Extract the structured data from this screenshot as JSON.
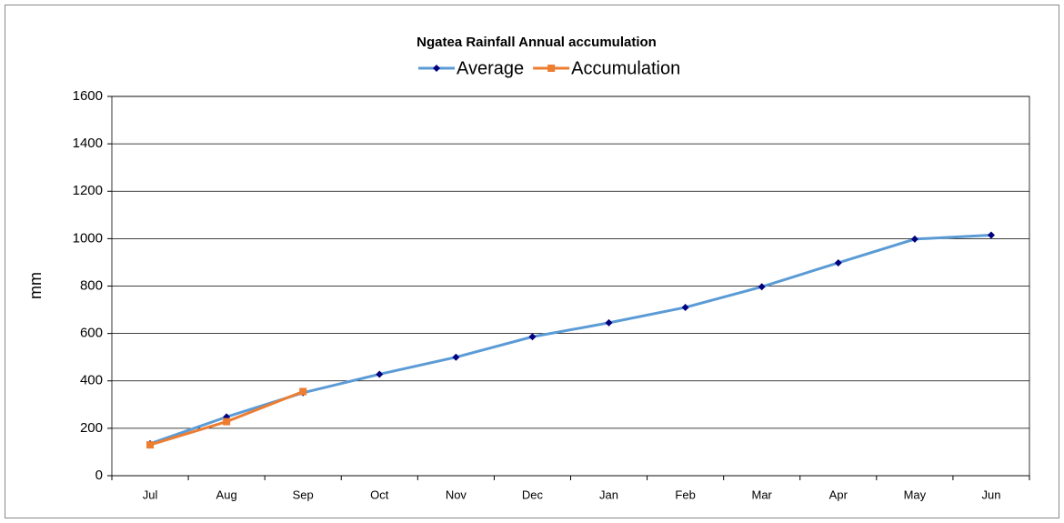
{
  "chart_data": {
    "type": "line",
    "title": "Ngatea Rainfall Annual accumulation",
    "ylabel": "mm",
    "categories": [
      "Jul",
      "Aug",
      "Sep",
      "Oct",
      "Nov",
      "Dec",
      "Jan",
      "Feb",
      "Mar",
      "Apr",
      "May",
      "Jun"
    ],
    "series": [
      {
        "name": "Average",
        "color": "#5b9bd5",
        "marker_color": "#000080",
        "marker": "diamond",
        "values": [
          135,
          248,
          350,
          428,
          500,
          586,
          645,
          710,
          797,
          898,
          998,
          1015
        ]
      },
      {
        "name": "Accumulation",
        "color": "#ed7d31",
        "marker_color": "#ed7d31",
        "marker": "square",
        "values": [
          130,
          228,
          355,
          null,
          null,
          null,
          null,
          null,
          null,
          null,
          null,
          null
        ]
      }
    ],
    "ylim": [
      0,
      1600
    ],
    "yticks": [
      0,
      200,
      400,
      600,
      800,
      1000,
      1200,
      1400,
      1600
    ],
    "grid": true,
    "legend": "top"
  }
}
